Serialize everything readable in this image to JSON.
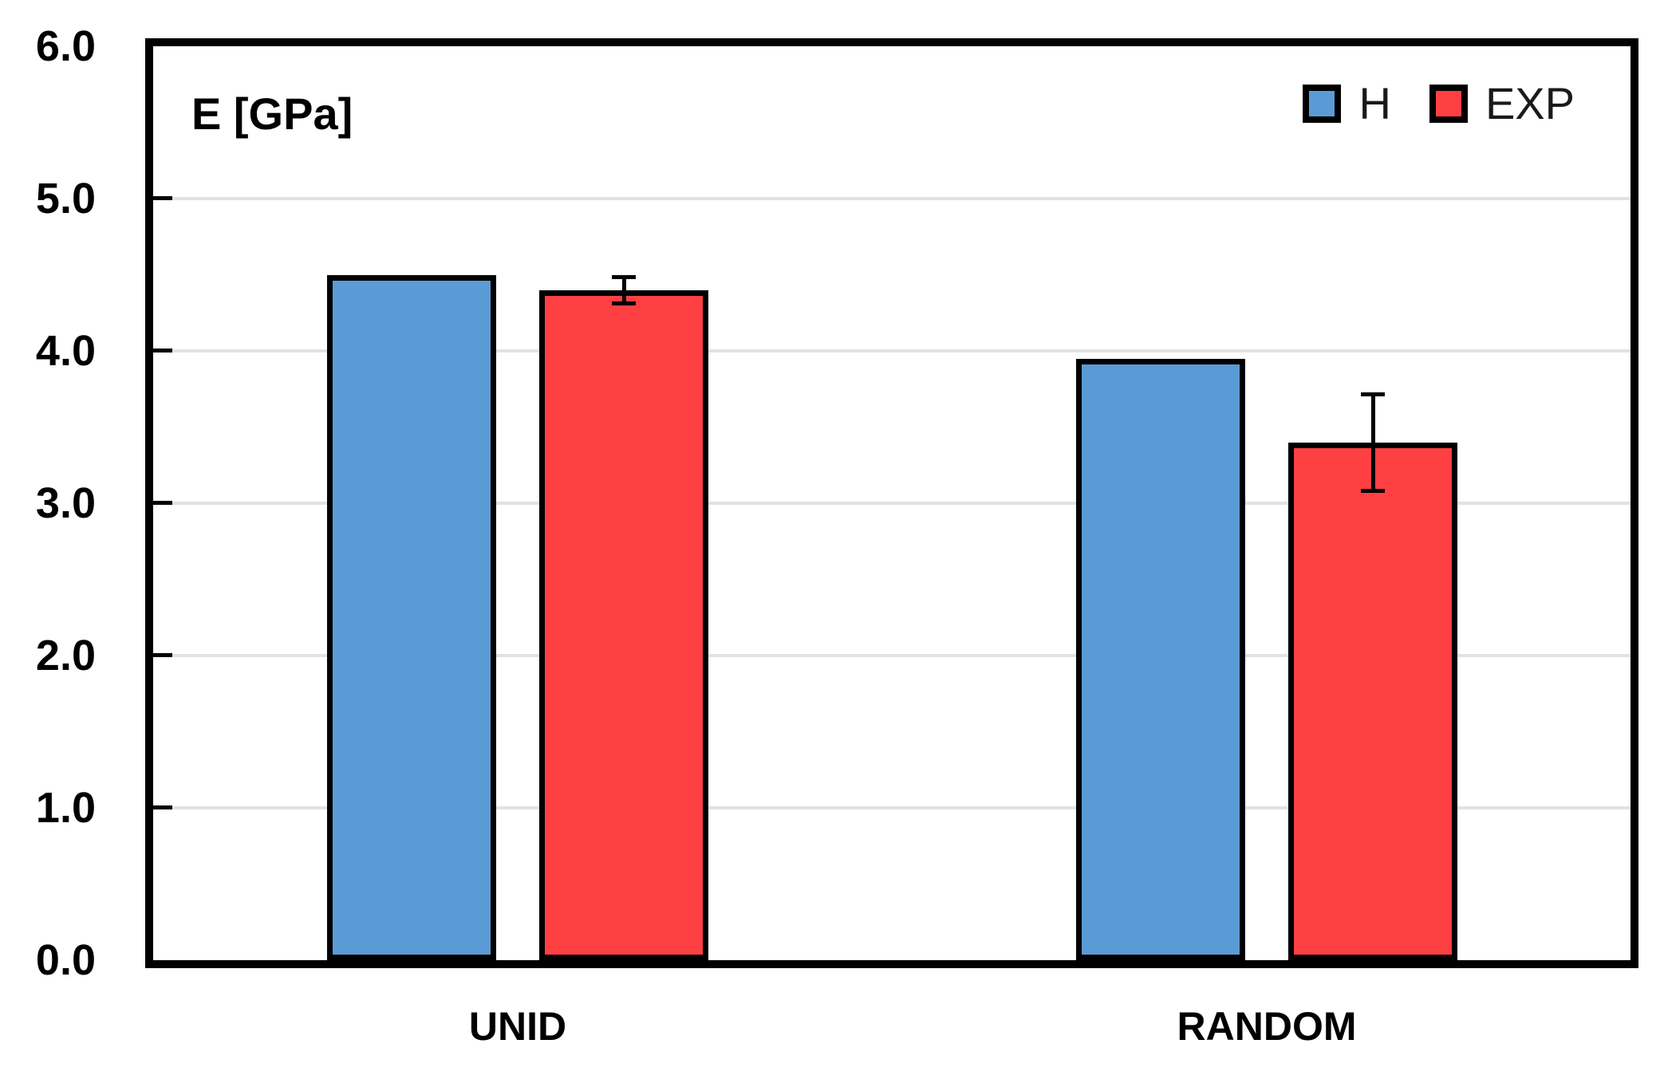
{
  "chart_data": {
    "type": "bar",
    "title": "",
    "ylabel": "E [GPa]",
    "xlabel": "",
    "categories": [
      "UNID",
      "RANDOM"
    ],
    "series": [
      {
        "name": "H",
        "color": "#5B9BD5",
        "values": [
          4.5,
          3.95
        ],
        "errors": [
          null,
          null
        ]
      },
      {
        "name": "EXP",
        "color": "#FF4043",
        "values": [
          4.4,
          3.4
        ],
        "errors": [
          0.1,
          0.33
        ]
      }
    ],
    "ylim": [
      0,
      6
    ],
    "ytick_labels": [
      "0.0",
      "1.0",
      "2.0",
      "3.0",
      "4.0",
      "5.0",
      "6.0"
    ],
    "grid": "horizontal",
    "gridline_color": "#E2E2E2",
    "bar_edge_color": "#000000",
    "legend_position": "top-right"
  }
}
